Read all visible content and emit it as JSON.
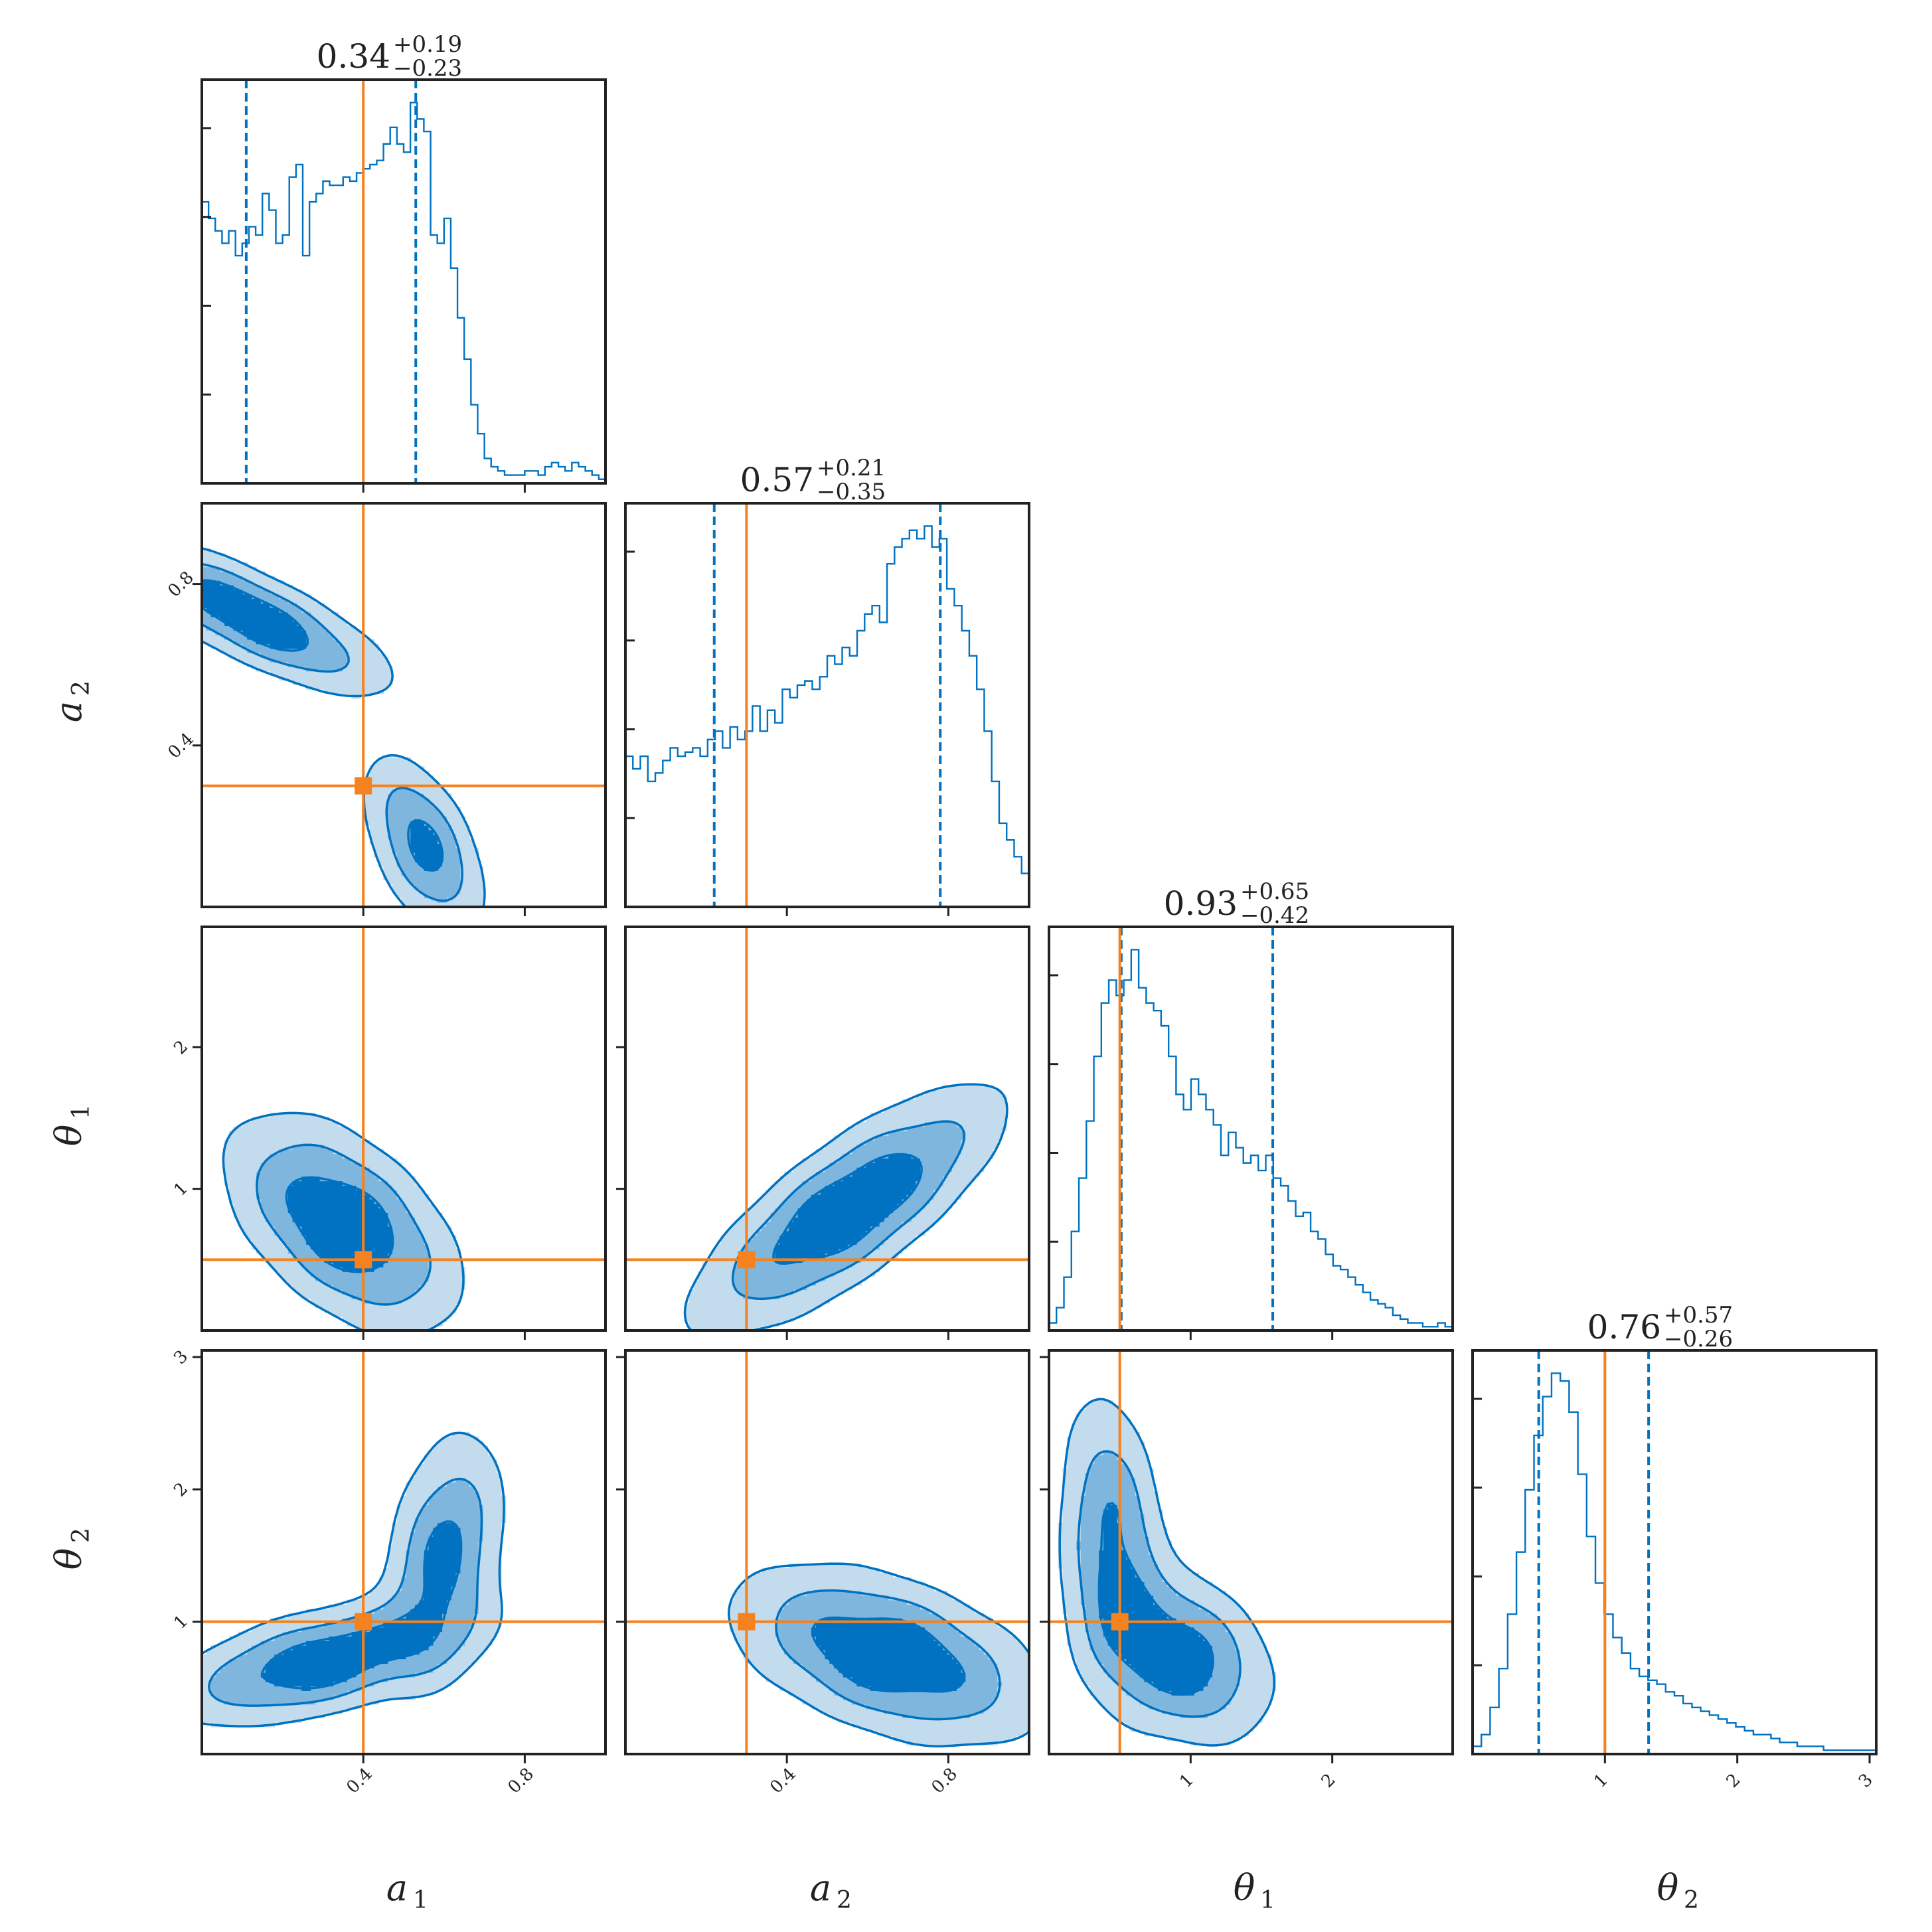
{
  "colors": {
    "posterior": "#0072C1",
    "truth": "#F5821F",
    "frame": "#222222"
  },
  "chart_data": {
    "type": "corner",
    "parameters": [
      {
        "id": "a1",
        "symbol": "a",
        "subscript": "1",
        "range": [
          0.0,
          1.0
        ],
        "ticks": [
          0.4,
          0.8
        ],
        "tick_labels": [
          "0.4",
          "0.8"
        ],
        "truth": 0.4,
        "median": 0.34,
        "plus": "0.19",
        "minus": "0.23",
        "title": "0.34",
        "quantiles": [
          0.11,
          0.53
        ]
      },
      {
        "id": "a2",
        "symbol": "a",
        "subscript": "2",
        "range": [
          0.0,
          1.0
        ],
        "ticks": [
          0.4,
          0.8
        ],
        "tick_labels": [
          "0.4",
          "0.8"
        ],
        "truth": 0.3,
        "median": 0.57,
        "plus": "0.21",
        "minus": "0.35",
        "title": "0.57",
        "quantiles": [
          0.22,
          0.78
        ]
      },
      {
        "id": "theta1",
        "symbol": "θ",
        "subscript": "1",
        "range": [
          0.0,
          2.85
        ],
        "ticks": [
          1,
          2
        ],
        "tick_labels": [
          "1",
          "2"
        ],
        "truth": 0.5,
        "median": 0.93,
        "plus": "0.65",
        "minus": "0.42",
        "title": "0.93",
        "quantiles": [
          0.51,
          1.58
        ]
      },
      {
        "id": "theta2",
        "symbol": "θ",
        "subscript": "2",
        "range": [
          0.0,
          3.05
        ],
        "ticks": [
          1,
          2,
          3
        ],
        "tick_labels": [
          "1",
          "2",
          "3"
        ],
        "truth": 1.0,
        "median": 0.76,
        "plus": "0.57",
        "minus": "0.26",
        "title": "0.76",
        "quantiles": [
          0.5,
          1.33
        ]
      }
    ],
    "histograms": {
      "a1": [
        0.68,
        0.64,
        0.61,
        0.58,
        0.61,
        0.55,
        0.58,
        0.62,
        0.6,
        0.7,
        0.66,
        0.58,
        0.6,
        0.74,
        0.77,
        0.55,
        0.68,
        0.7,
        0.73,
        0.72,
        0.72,
        0.74,
        0.73,
        0.75,
        0.76,
        0.77,
        0.78,
        0.82,
        0.86,
        0.82,
        0.8,
        0.92,
        0.88,
        0.85,
        0.6,
        0.58,
        0.64,
        0.52,
        0.4,
        0.3,
        0.19,
        0.12,
        0.06,
        0.04,
        0.03,
        0.02,
        0.02,
        0.02,
        0.03,
        0.03,
        0.02,
        0.04,
        0.05,
        0.04,
        0.03,
        0.05,
        0.04,
        0.03,
        0.02,
        0.01
      ],
      "a2": [
        0.36,
        0.33,
        0.36,
        0.3,
        0.32,
        0.35,
        0.38,
        0.36,
        0.37,
        0.38,
        0.36,
        0.4,
        0.42,
        0.38,
        0.43,
        0.4,
        0.42,
        0.48,
        0.42,
        0.47,
        0.44,
        0.52,
        0.5,
        0.53,
        0.54,
        0.52,
        0.55,
        0.6,
        0.58,
        0.62,
        0.6,
        0.66,
        0.7,
        0.72,
        0.68,
        0.82,
        0.86,
        0.88,
        0.9,
        0.88,
        0.91,
        0.86,
        0.88,
        0.76,
        0.72,
        0.66,
        0.6,
        0.52,
        0.42,
        0.3,
        0.2,
        0.16,
        0.12,
        0.08
      ],
      "theta1": [
        0.02,
        0.06,
        0.14,
        0.26,
        0.4,
        0.55,
        0.72,
        0.86,
        0.92,
        0.88,
        0.92,
        1.0,
        0.9,
        0.86,
        0.84,
        0.8,
        0.72,
        0.62,
        0.58,
        0.66,
        0.62,
        0.58,
        0.54,
        0.46,
        0.52,
        0.48,
        0.44,
        0.46,
        0.42,
        0.46,
        0.4,
        0.38,
        0.34,
        0.3,
        0.31,
        0.26,
        0.24,
        0.2,
        0.17,
        0.16,
        0.14,
        0.12,
        0.1,
        0.08,
        0.07,
        0.06,
        0.04,
        0.03,
        0.02,
        0.02,
        0.01,
        0.01,
        0.02,
        0.01
      ],
      "theta2": [
        0.02,
        0.05,
        0.12,
        0.22,
        0.36,
        0.52,
        0.68,
        0.82,
        0.92,
        0.98,
        0.96,
        0.88,
        0.72,
        0.56,
        0.44,
        0.36,
        0.3,
        0.26,
        0.22,
        0.2,
        0.19,
        0.18,
        0.16,
        0.15,
        0.13,
        0.12,
        0.11,
        0.1,
        0.09,
        0.08,
        0.07,
        0.06,
        0.05,
        0.05,
        0.04,
        0.03,
        0.03,
        0.02,
        0.02,
        0.02,
        0.01,
        0.01,
        0.01,
        0.01,
        0.01,
        0.01
      ],
      "y_ticks_fraction": [
        0.22,
        0.44,
        0.66,
        0.88
      ]
    },
    "pair_modes": [
      {
        "row": "a2",
        "col": "a1",
        "mean": [
          0.12,
          0.72
        ],
        "sd": [
          0.18,
          0.1
        ],
        "rho": -0.78
      },
      {
        "row": "a2",
        "col": "a1",
        "mean": [
          0.55,
          0.15
        ],
        "sd": [
          0.08,
          0.12
        ],
        "rho": -0.5
      },
      {
        "row": "theta1",
        "col": "a1",
        "mean": [
          0.35,
          0.75
        ],
        "sd": [
          0.15,
          0.4
        ],
        "rho": -0.5
      },
      {
        "row": "theta1",
        "col": "a2",
        "mean": [
          0.55,
          0.85
        ],
        "sd": [
          0.2,
          0.45
        ],
        "rho": 0.78
      },
      {
        "row": "theta2",
        "col": "a1",
        "mean": [
          0.3,
          0.7
        ],
        "sd": [
          0.2,
          0.25
        ],
        "rho": 0.55
      },
      {
        "row": "theta2",
        "col": "a1",
        "mean": [
          0.6,
          1.5
        ],
        "sd": [
          0.08,
          0.5
        ],
        "rho": 0.3
      },
      {
        "row": "theta2",
        "col": "a2",
        "mean": [
          0.65,
          0.75
        ],
        "sd": [
          0.2,
          0.35
        ],
        "rho": -0.45
      },
      {
        "row": "theta2",
        "col": "theta1",
        "mean": [
          0.9,
          0.75
        ],
        "sd": [
          0.35,
          0.35
        ],
        "rho": -0.3
      },
      {
        "row": "theta2",
        "col": "theta1",
        "mean": [
          0.45,
          1.6
        ],
        "sd": [
          0.2,
          0.6
        ],
        "rho": -0.2
      }
    ]
  }
}
